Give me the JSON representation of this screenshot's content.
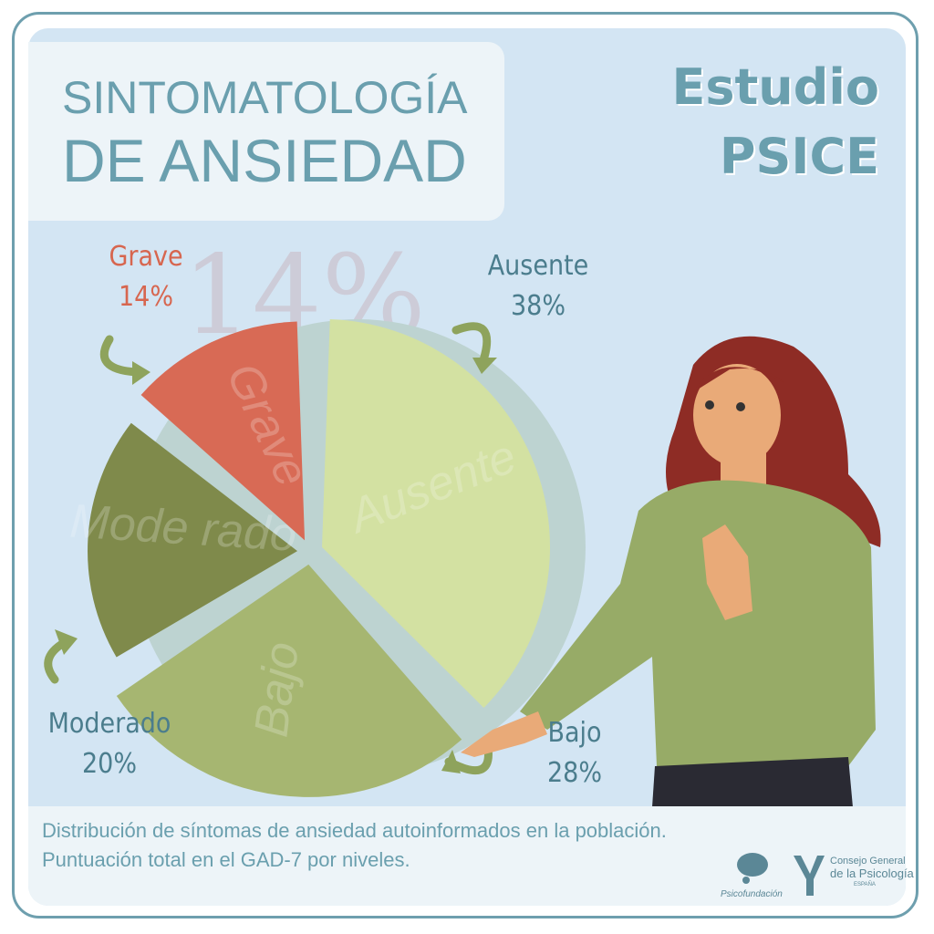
{
  "title": {
    "line1": "SINTOMATOLOGÍA",
    "line2": "DE ANSIEDAD"
  },
  "study": {
    "line1": "Estudio",
    "line2": "PSICE"
  },
  "watermark": "14%",
  "colors": {
    "background": "#d3e5f3",
    "ring": "#bdd3d1",
    "accent_text": "#6a9fae",
    "arrow": "#8ea35c"
  },
  "chart_data": {
    "type": "pie",
    "categories": [
      "Ausente",
      "Bajo",
      "Moderado",
      "Grave"
    ],
    "values": [
      38,
      28,
      20,
      14
    ],
    "unit": "%",
    "labels": [
      "38%",
      "28%",
      "20%",
      "14%"
    ],
    "slice_texts": [
      "Ausente",
      "Bajo",
      "Mode rado",
      "Grave"
    ],
    "colors": [
      "#d3e1a2",
      "#a6b671",
      "#7f8a4b",
      "#d86a55"
    ]
  },
  "caption": {
    "line1": "Distribución de síntomas de ansiedad autoinformados en la población.",
    "line2": "Puntuación total en el GAD-7 por niveles."
  },
  "logos": {
    "psicofundacion": "Psicofundación",
    "consejo_line1": "Consejo General",
    "consejo_line2": "de la Psicología",
    "consejo_line3": "ESPAÑA"
  }
}
